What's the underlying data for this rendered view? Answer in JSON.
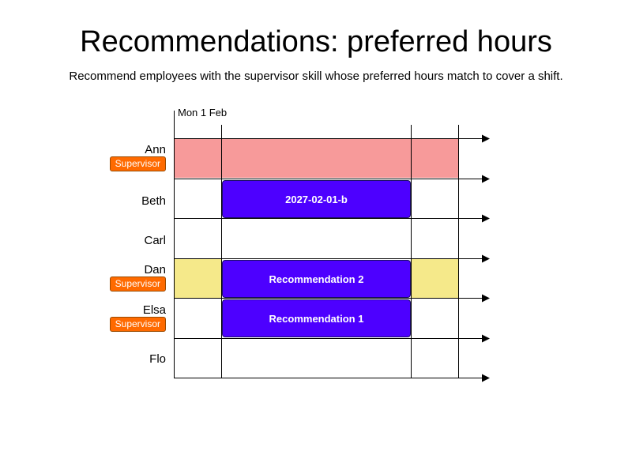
{
  "title": "Recommendations: preferred hours",
  "subtitle": "Recommend employees with the supervisor skill whose preferred hours match to cover a shift.",
  "date_label": "Mon 1 Feb",
  "colors": {
    "shift": "#4d00ff",
    "unavailable": "#f79a9a",
    "preferred": "#f5e98a",
    "badge": "#ff6a00",
    "line": "#000000"
  },
  "employees": [
    {
      "name": "Ann",
      "skill": "Supervisor"
    },
    {
      "name": "Beth"
    },
    {
      "name": "Carl"
    },
    {
      "name": "Dan",
      "skill": "Supervisor"
    },
    {
      "name": "Elsa",
      "skill": "Supervisor"
    },
    {
      "name": "Flo"
    }
  ],
  "shifts": [
    {
      "label": "2027-02-01-b",
      "row": 1
    },
    {
      "label": "Recommendation 2",
      "row": 3
    },
    {
      "label": "Recommendation 1",
      "row": 4
    }
  ]
}
